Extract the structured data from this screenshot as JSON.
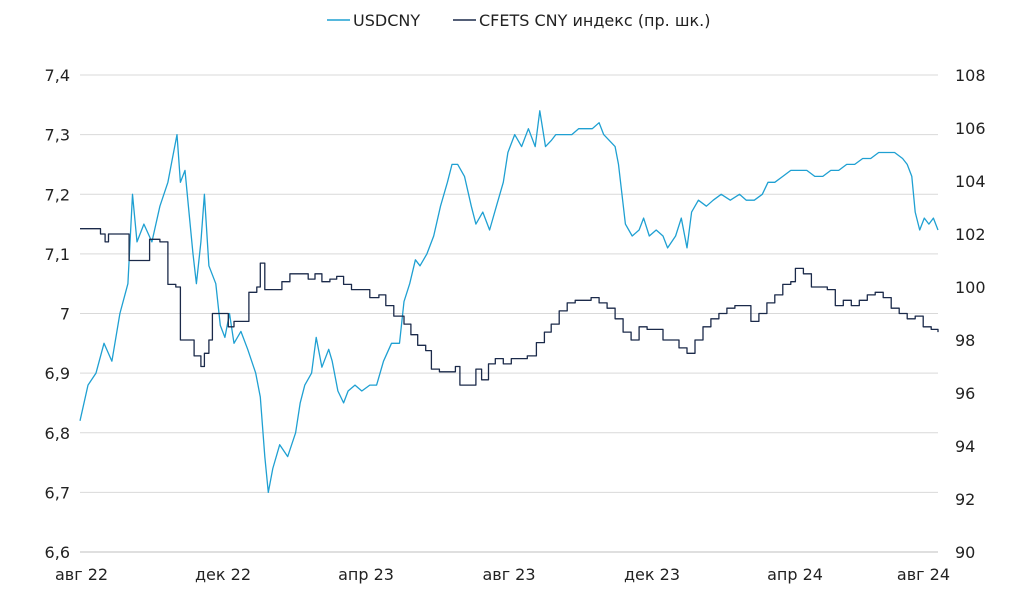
{
  "chart_data": {
    "type": "line",
    "title": "",
    "xlabel": "",
    "ylabel": "",
    "x_ticks": [
      "авг 22",
      "дек 22",
      "апр 23",
      "авг 23",
      "дек 23",
      "апр 24",
      "авг 24"
    ],
    "y_left": {
      "ticks": [
        "6,6",
        "6,7",
        "6,8",
        "6,9",
        "7",
        "7,1",
        "7,2",
        "7,3",
        "7,4"
      ],
      "ylim": [
        6.6,
        7.4
      ]
    },
    "y_right": {
      "ticks": [
        "90",
        "92",
        "94",
        "96",
        "98",
        "100",
        "102",
        "104",
        "106",
        "108"
      ],
      "ylim": [
        90,
        108
      ]
    },
    "grid": true,
    "legend_position": "top-center",
    "series": [
      {
        "name": "USDCNY",
        "axis": "left",
        "color": "#1fa0d2",
        "points": [
          [
            "2022-08-01",
            6.82
          ],
          [
            "2022-08-08",
            6.88
          ],
          [
            "2022-08-15",
            6.9
          ],
          [
            "2022-08-22",
            6.95
          ],
          [
            "2022-08-29",
            6.92
          ],
          [
            "2022-09-05",
            7.0
          ],
          [
            "2022-09-12",
            7.05
          ],
          [
            "2022-09-16",
            7.2
          ],
          [
            "2022-09-20",
            7.12
          ],
          [
            "2022-09-26",
            7.15
          ],
          [
            "2022-10-03",
            7.12
          ],
          [
            "2022-10-10",
            7.18
          ],
          [
            "2022-10-17",
            7.22
          ],
          [
            "2022-10-21",
            7.26
          ],
          [
            "2022-10-25",
            7.3
          ],
          [
            "2022-10-28",
            7.22
          ],
          [
            "2022-11-01",
            7.24
          ],
          [
            "2022-11-04",
            7.18
          ],
          [
            "2022-11-08",
            7.1
          ],
          [
            "2022-11-11",
            7.05
          ],
          [
            "2022-11-15",
            7.12
          ],
          [
            "2022-11-18",
            7.2
          ],
          [
            "2022-11-22",
            7.08
          ],
          [
            "2022-11-28",
            7.05
          ],
          [
            "2022-12-02",
            6.98
          ],
          [
            "2022-12-06",
            6.96
          ],
          [
            "2022-12-10",
            7.0
          ],
          [
            "2022-12-14",
            6.95
          ],
          [
            "2022-12-20",
            6.97
          ],
          [
            "2022-12-26",
            6.94
          ],
          [
            "2023-01-02",
            6.9
          ],
          [
            "2023-01-06",
            6.86
          ],
          [
            "2023-01-10",
            6.76
          ],
          [
            "2023-01-13",
            6.7
          ],
          [
            "2023-01-17",
            6.74
          ],
          [
            "2023-01-23",
            6.78
          ],
          [
            "2023-01-30",
            6.76
          ],
          [
            "2023-02-06",
            6.8
          ],
          [
            "2023-02-10",
            6.85
          ],
          [
            "2023-02-14",
            6.88
          ],
          [
            "2023-02-20",
            6.9
          ],
          [
            "2023-02-24",
            6.96
          ],
          [
            "2023-03-01",
            6.91
          ],
          [
            "2023-03-07",
            6.94
          ],
          [
            "2023-03-10",
            6.92
          ],
          [
            "2023-03-15",
            6.87
          ],
          [
            "2023-03-20",
            6.85
          ],
          [
            "2023-03-24",
            6.87
          ],
          [
            "2023-03-30",
            6.88
          ],
          [
            "2023-04-05",
            6.87
          ],
          [
            "2023-04-12",
            6.88
          ],
          [
            "2023-04-18",
            6.88
          ],
          [
            "2023-04-24",
            6.92
          ],
          [
            "2023-05-01",
            6.95
          ],
          [
            "2023-05-08",
            6.95
          ],
          [
            "2023-05-12",
            7.02
          ],
          [
            "2023-05-17",
            7.05
          ],
          [
            "2023-05-22",
            7.09
          ],
          [
            "2023-05-26",
            7.08
          ],
          [
            "2023-06-01",
            7.1
          ],
          [
            "2023-06-07",
            7.13
          ],
          [
            "2023-06-13",
            7.18
          ],
          [
            "2023-06-19",
            7.22
          ],
          [
            "2023-06-23",
            7.25
          ],
          [
            "2023-06-28",
            7.25
          ],
          [
            "2023-07-04",
            7.23
          ],
          [
            "2023-07-10",
            7.18
          ],
          [
            "2023-07-14",
            7.15
          ],
          [
            "2023-07-20",
            7.17
          ],
          [
            "2023-07-26",
            7.14
          ],
          [
            "2023-08-01",
            7.18
          ],
          [
            "2023-08-07",
            7.22
          ],
          [
            "2023-08-11",
            7.27
          ],
          [
            "2023-08-17",
            7.3
          ],
          [
            "2023-08-23",
            7.28
          ],
          [
            "2023-08-29",
            7.31
          ],
          [
            "2023-09-04",
            7.28
          ],
          [
            "2023-09-08",
            7.34
          ],
          [
            "2023-09-13",
            7.28
          ],
          [
            "2023-09-18",
            7.29
          ],
          [
            "2023-09-22",
            7.3
          ],
          [
            "2023-09-29",
            7.3
          ],
          [
            "2023-10-06",
            7.3
          ],
          [
            "2023-10-12",
            7.31
          ],
          [
            "2023-10-18",
            7.31
          ],
          [
            "2023-10-24",
            7.31
          ],
          [
            "2023-10-30",
            7.32
          ],
          [
            "2023-11-03",
            7.3
          ],
          [
            "2023-11-08",
            7.29
          ],
          [
            "2023-11-13",
            7.28
          ],
          [
            "2023-11-16",
            7.25
          ],
          [
            "2023-11-22",
            7.15
          ],
          [
            "2023-11-28",
            7.13
          ],
          [
            "2023-12-04",
            7.14
          ],
          [
            "2023-12-08",
            7.16
          ],
          [
            "2023-12-13",
            7.13
          ],
          [
            "2023-12-19",
            7.14
          ],
          [
            "2023-12-25",
            7.13
          ],
          [
            "2023-12-29",
            7.11
          ],
          [
            "2024-01-05",
            7.13
          ],
          [
            "2024-01-10",
            7.16
          ],
          [
            "2024-01-15",
            7.11
          ],
          [
            "2024-01-19",
            7.17
          ],
          [
            "2024-01-25",
            7.19
          ],
          [
            "2024-02-01",
            7.18
          ],
          [
            "2024-02-07",
            7.19
          ],
          [
            "2024-02-14",
            7.2
          ],
          [
            "2024-02-22",
            7.19
          ],
          [
            "2024-03-01",
            7.2
          ],
          [
            "2024-03-07",
            7.19
          ],
          [
            "2024-03-14",
            7.19
          ],
          [
            "2024-03-21",
            7.2
          ],
          [
            "2024-03-26",
            7.22
          ],
          [
            "2024-04-01",
            7.22
          ],
          [
            "2024-04-08",
            7.23
          ],
          [
            "2024-04-15",
            7.24
          ],
          [
            "2024-04-22",
            7.24
          ],
          [
            "2024-04-29",
            7.24
          ],
          [
            "2024-05-06",
            7.23
          ],
          [
            "2024-05-13",
            7.23
          ],
          [
            "2024-05-20",
            7.24
          ],
          [
            "2024-05-27",
            7.24
          ],
          [
            "2024-06-03",
            7.25
          ],
          [
            "2024-06-10",
            7.25
          ],
          [
            "2024-06-17",
            7.26
          ],
          [
            "2024-06-24",
            7.26
          ],
          [
            "2024-07-01",
            7.27
          ],
          [
            "2024-07-08",
            7.27
          ],
          [
            "2024-07-15",
            7.27
          ],
          [
            "2024-07-22",
            7.26
          ],
          [
            "2024-07-26",
            7.25
          ],
          [
            "2024-07-30",
            7.23
          ],
          [
            "2024-08-02",
            7.17
          ],
          [
            "2024-08-06",
            7.14
          ],
          [
            "2024-08-10",
            7.16
          ],
          [
            "2024-08-14",
            7.15
          ],
          [
            "2024-08-18",
            7.16
          ],
          [
            "2024-08-22",
            7.14
          ]
        ]
      },
      {
        "name": "CFETS CNY индекс (пр. шк.)",
        "axis": "right",
        "color": "#1b2a4a",
        "points": [
          [
            "2022-08-01",
            102.2
          ],
          [
            "2022-08-12",
            102.2
          ],
          [
            "2022-08-19",
            102.0
          ],
          [
            "2022-08-23",
            101.7
          ],
          [
            "2022-08-26",
            102.0
          ],
          [
            "2022-09-09",
            102.0
          ],
          [
            "2022-09-13",
            101.0
          ],
          [
            "2022-09-27",
            101.0
          ],
          [
            "2022-10-01",
            101.8
          ],
          [
            "2022-10-10",
            101.7
          ],
          [
            "2022-10-17",
            100.1
          ],
          [
            "2022-10-24",
            100.0
          ],
          [
            "2022-10-28",
            98.0
          ],
          [
            "2022-11-04",
            98.0
          ],
          [
            "2022-11-09",
            97.4
          ],
          [
            "2022-11-15",
            97.0
          ],
          [
            "2022-11-18",
            97.5
          ],
          [
            "2022-11-22",
            98.0
          ],
          [
            "2022-11-25",
            99.0
          ],
          [
            "2022-12-05",
            99.0
          ],
          [
            "2022-12-09",
            98.5
          ],
          [
            "2022-12-14",
            98.7
          ],
          [
            "2022-12-20",
            98.7
          ],
          [
            "2022-12-27",
            99.8
          ],
          [
            "2023-01-03",
            100.0
          ],
          [
            "2023-01-06",
            100.9
          ],
          [
            "2023-01-10",
            99.9
          ],
          [
            "2023-01-20",
            99.9
          ],
          [
            "2023-01-25",
            100.2
          ],
          [
            "2023-02-01",
            100.5
          ],
          [
            "2023-02-10",
            100.5
          ],
          [
            "2023-02-17",
            100.3
          ],
          [
            "2023-02-23",
            100.5
          ],
          [
            "2023-03-01",
            100.2
          ],
          [
            "2023-03-08",
            100.3
          ],
          [
            "2023-03-14",
            100.4
          ],
          [
            "2023-03-20",
            100.1
          ],
          [
            "2023-03-27",
            99.9
          ],
          [
            "2023-04-03",
            99.9
          ],
          [
            "2023-04-12",
            99.6
          ],
          [
            "2023-04-20",
            99.7
          ],
          [
            "2023-04-26",
            99.3
          ],
          [
            "2023-05-03",
            98.9
          ],
          [
            "2023-05-12",
            98.6
          ],
          [
            "2023-05-18",
            98.2
          ],
          [
            "2023-05-24",
            97.8
          ],
          [
            "2023-05-31",
            97.6
          ],
          [
            "2023-06-05",
            96.9
          ],
          [
            "2023-06-12",
            96.8
          ],
          [
            "2023-06-19",
            96.8
          ],
          [
            "2023-06-26",
            97.0
          ],
          [
            "2023-06-30",
            96.3
          ],
          [
            "2023-07-10",
            96.3
          ],
          [
            "2023-07-14",
            96.9
          ],
          [
            "2023-07-19",
            96.5
          ],
          [
            "2023-07-25",
            97.1
          ],
          [
            "2023-07-31",
            97.3
          ],
          [
            "2023-08-07",
            97.1
          ],
          [
            "2023-08-14",
            97.3
          ],
          [
            "2023-08-21",
            97.3
          ],
          [
            "2023-08-28",
            97.4
          ],
          [
            "2023-09-05",
            97.9
          ],
          [
            "2023-09-12",
            98.3
          ],
          [
            "2023-09-18",
            98.6
          ],
          [
            "2023-09-25",
            99.1
          ],
          [
            "2023-10-02",
            99.4
          ],
          [
            "2023-10-09",
            99.5
          ],
          [
            "2023-10-16",
            99.5
          ],
          [
            "2023-10-23",
            99.6
          ],
          [
            "2023-10-30",
            99.4
          ],
          [
            "2023-11-06",
            99.2
          ],
          [
            "2023-11-13",
            98.8
          ],
          [
            "2023-11-20",
            98.3
          ],
          [
            "2023-11-27",
            98.0
          ],
          [
            "2023-12-04",
            98.5
          ],
          [
            "2023-12-11",
            98.4
          ],
          [
            "2023-12-18",
            98.4
          ],
          [
            "2023-12-25",
            98.0
          ],
          [
            "2024-01-02",
            98.0
          ],
          [
            "2024-01-08",
            97.7
          ],
          [
            "2024-01-15",
            97.5
          ],
          [
            "2024-01-22",
            98.0
          ],
          [
            "2024-01-29",
            98.5
          ],
          [
            "2024-02-05",
            98.8
          ],
          [
            "2024-02-12",
            99.0
          ],
          [
            "2024-02-19",
            99.2
          ],
          [
            "2024-02-26",
            99.3
          ],
          [
            "2024-03-04",
            99.3
          ],
          [
            "2024-03-11",
            98.7
          ],
          [
            "2024-03-18",
            99.0
          ],
          [
            "2024-03-25",
            99.4
          ],
          [
            "2024-04-01",
            99.7
          ],
          [
            "2024-04-08",
            100.1
          ],
          [
            "2024-04-15",
            100.2
          ],
          [
            "2024-04-19",
            100.7
          ],
          [
            "2024-04-26",
            100.5
          ],
          [
            "2024-05-03",
            100.0
          ],
          [
            "2024-05-10",
            100.0
          ],
          [
            "2024-05-17",
            99.9
          ],
          [
            "2024-05-24",
            99.3
          ],
          [
            "2024-05-31",
            99.5
          ],
          [
            "2024-06-07",
            99.3
          ],
          [
            "2024-06-14",
            99.5
          ],
          [
            "2024-06-21",
            99.7
          ],
          [
            "2024-06-28",
            99.8
          ],
          [
            "2024-07-05",
            99.6
          ],
          [
            "2024-07-12",
            99.2
          ],
          [
            "2024-07-19",
            99.0
          ],
          [
            "2024-07-26",
            98.8
          ],
          [
            "2024-08-02",
            98.9
          ],
          [
            "2024-08-09",
            98.5
          ],
          [
            "2024-08-16",
            98.4
          ],
          [
            "2024-08-22",
            98.3
          ]
        ]
      }
    ]
  }
}
